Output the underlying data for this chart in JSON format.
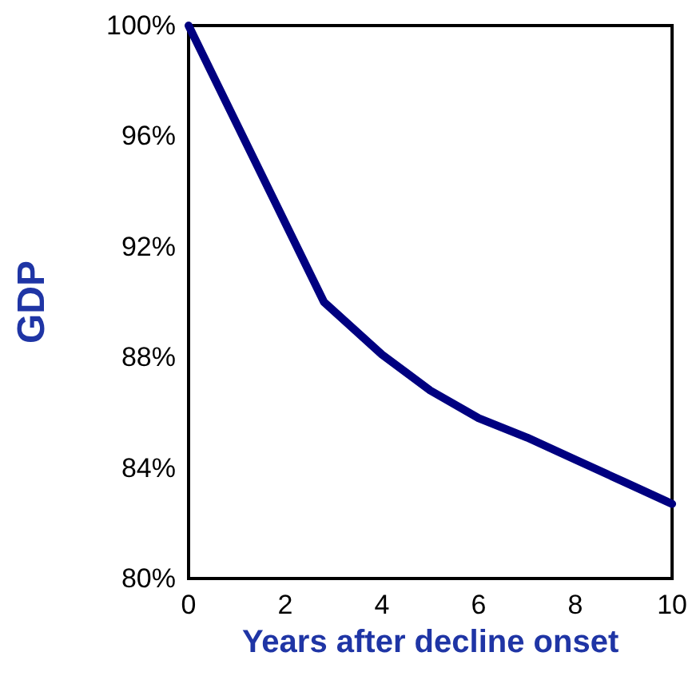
{
  "chart_data": {
    "type": "line",
    "xlabel": "Years after decline onset",
    "ylabel": "GDP",
    "x": [
      0,
      2.8,
      4,
      5,
      6,
      7,
      8,
      9,
      10
    ],
    "series": [
      {
        "color": "#000080",
        "values": [
          100,
          90,
          88.1,
          86.8,
          85.8,
          85.1,
          84.3,
          83.5,
          82.7
        ]
      }
    ],
    "xlim": [
      0,
      10
    ],
    "xticks": [
      0,
      2,
      4,
      6,
      8,
      10
    ],
    "ylim": [
      80,
      100
    ],
    "yticks": [
      {
        "value": 80,
        "label": "80%"
      },
      {
        "value": 84,
        "label": "84%"
      },
      {
        "value": 88,
        "label": "88%"
      },
      {
        "value": 92,
        "label": "92%"
      },
      {
        "value": 96,
        "label": "96%"
      },
      {
        "value": 100,
        "label": "100%"
      }
    ],
    "grid": false,
    "marker": "none",
    "line_style": "solid"
  }
}
